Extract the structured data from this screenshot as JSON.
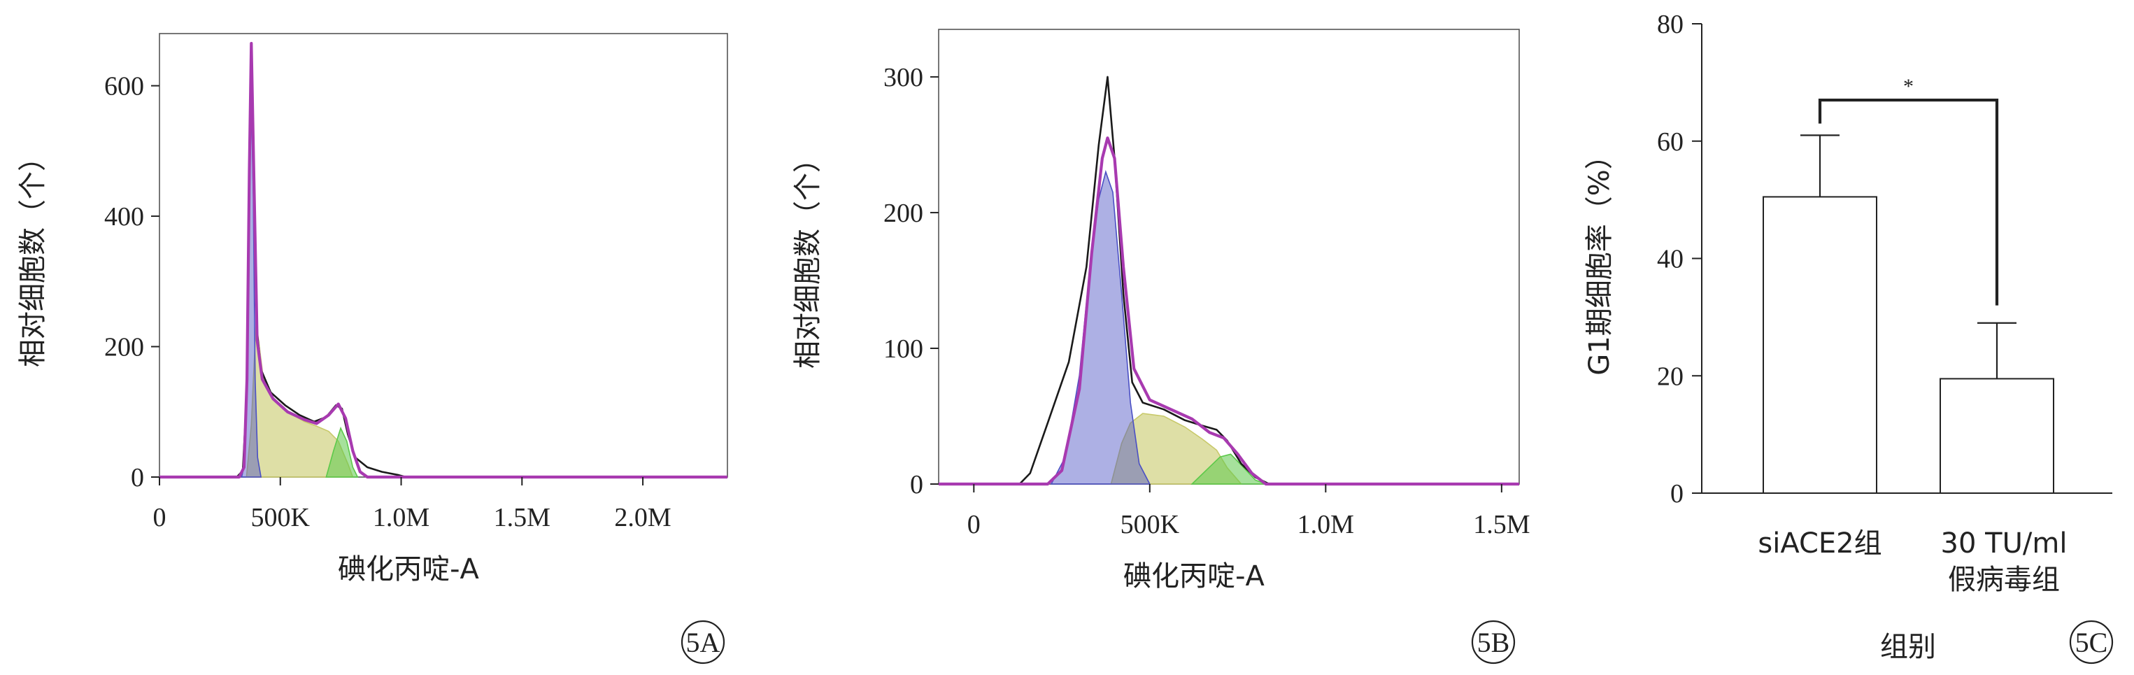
{
  "chart_data": [
    {
      "panel": "5A",
      "type": "area",
      "xlabel": "碘化丙啶-A",
      "ylabel": "相对细胞数（个）",
      "xlim": [
        0,
        2350000
      ],
      "ylim": [
        0,
        680
      ],
      "x_ticks": [
        0,
        500000,
        1000000,
        1500000,
        2000000
      ],
      "x_tick_labels": [
        "0",
        "500K",
        "1.0M",
        "1.5M",
        "2.0M"
      ],
      "y_ticks": [
        0,
        200,
        400,
        600
      ],
      "y_tick_labels": [
        "0",
        "200",
        "400",
        "600"
      ],
      "series": [
        {
          "role": "s-phase",
          "color": "#c8c96a",
          "fill_opacity": 0.6,
          "points": [
            [
              360000,
              0
            ],
            [
              380000,
              80
            ],
            [
              400000,
              240
            ],
            [
              430000,
              150
            ],
            [
              480000,
              115
            ],
            [
              530000,
              100
            ],
            [
              600000,
              85
            ],
            [
              650000,
              78
            ],
            [
              700000,
              70
            ],
            [
              740000,
              55
            ],
            [
              780000,
              20
            ],
            [
              800000,
              0
            ]
          ]
        },
        {
          "role": "g1-peak",
          "color": "#4a4fc4",
          "fill_opacity": 0.45,
          "points": [
            [
              340000,
              0
            ],
            [
              352000,
              20
            ],
            [
              362000,
              160
            ],
            [
              372000,
              420
            ],
            [
              380000,
              580
            ],
            [
              388000,
              430
            ],
            [
              396000,
              150
            ],
            [
              406000,
              30
            ],
            [
              420000,
              0
            ]
          ]
        },
        {
          "role": "g2-peak",
          "color": "#5cc94a",
          "fill_opacity": 0.55,
          "points": [
            [
              690000,
              0
            ],
            [
              720000,
              40
            ],
            [
              750000,
              75
            ],
            [
              775000,
              55
            ],
            [
              800000,
              15
            ],
            [
              820000,
              0
            ]
          ]
        },
        {
          "role": "raw",
          "color": "#1a1a1a",
          "fill_opacity": 0,
          "points": [
            [
              0,
              0
            ],
            [
              320000,
              0
            ],
            [
              345000,
              10
            ],
            [
              360000,
              120
            ],
            [
              372000,
              480
            ],
            [
              380000,
              640
            ],
            [
              390000,
              460
            ],
            [
              402000,
              230
            ],
            [
              420000,
              165
            ],
            [
              460000,
              130
            ],
            [
              520000,
              110
            ],
            [
              580000,
              95
            ],
            [
              640000,
              85
            ],
            [
              690000,
              92
            ],
            [
              730000,
              110
            ],
            [
              755000,
              105
            ],
            [
              780000,
              65
            ],
            [
              810000,
              30
            ],
            [
              860000,
              15
            ],
            [
              920000,
              8
            ],
            [
              990000,
              3
            ],
            [
              1020000,
              0
            ],
            [
              2350000,
              0
            ]
          ]
        },
        {
          "role": "fit",
          "color": "#a83ab0",
          "fill_opacity": 0,
          "points": [
            [
              0,
              0
            ],
            [
              330000,
              0
            ],
            [
              350000,
              15
            ],
            [
              362000,
              150
            ],
            [
              372000,
              470
            ],
            [
              380000,
              665
            ],
            [
              390000,
              470
            ],
            [
              404000,
              210
            ],
            [
              425000,
              150
            ],
            [
              470000,
              120
            ],
            [
              530000,
              100
            ],
            [
              600000,
              88
            ],
            [
              650000,
              82
            ],
            [
              700000,
              95
            ],
            [
              740000,
              112
            ],
            [
              770000,
              90
            ],
            [
              800000,
              40
            ],
            [
              830000,
              8
            ],
            [
              860000,
              0
            ],
            [
              2350000,
              0
            ]
          ]
        }
      ]
    },
    {
      "panel": "5B",
      "type": "area",
      "xlabel": "碘化丙啶-A",
      "ylabel": "相对细胞数（个）",
      "xlim": [
        -100000,
        1550000
      ],
      "ylim": [
        0,
        335
      ],
      "x_ticks": [
        0,
        500000,
        1000000,
        1500000
      ],
      "x_tick_labels": [
        "0",
        "500K",
        "1.0M",
        "1.5M"
      ],
      "y_ticks": [
        0,
        100,
        200,
        300
      ],
      "y_tick_labels": [
        "0",
        "100",
        "200",
        "300"
      ],
      "series": [
        {
          "role": "s-phase",
          "color": "#c8c96a",
          "fill_opacity": 0.6,
          "points": [
            [
              390000,
              0
            ],
            [
              420000,
              30
            ],
            [
              445000,
              45
            ],
            [
              480000,
              52
            ],
            [
              540000,
              50
            ],
            [
              600000,
              42
            ],
            [
              650000,
              33
            ],
            [
              690000,
              25
            ],
            [
              720000,
              12
            ],
            [
              760000,
              0
            ]
          ]
        },
        {
          "role": "g1-peak",
          "color": "#4a4fc4",
          "fill_opacity": 0.45,
          "points": [
            [
              220000,
              0
            ],
            [
              260000,
              20
            ],
            [
              300000,
              80
            ],
            [
              330000,
              160
            ],
            [
              355000,
              210
            ],
            [
              375000,
              230
            ],
            [
              395000,
              215
            ],
            [
              420000,
              140
            ],
            [
              445000,
              60
            ],
            [
              470000,
              15
            ],
            [
              500000,
              0
            ]
          ]
        },
        {
          "role": "g2-peak",
          "color": "#5cc94a",
          "fill_opacity": 0.55,
          "points": [
            [
              620000,
              0
            ],
            [
              660000,
              10
            ],
            [
              700000,
              20
            ],
            [
              730000,
              22
            ],
            [
              760000,
              14
            ],
            [
              800000,
              3
            ],
            [
              830000,
              0
            ]
          ]
        },
        {
          "role": "raw",
          "color": "#1a1a1a",
          "fill_opacity": 0,
          "points": [
            [
              -100000,
              0
            ],
            [
              130000,
              0
            ],
            [
              160000,
              8
            ],
            [
              210000,
              45
            ],
            [
              270000,
              90
            ],
            [
              320000,
              160
            ],
            [
              355000,
              250
            ],
            [
              380000,
              300
            ],
            [
              400000,
              240
            ],
            [
              425000,
              140
            ],
            [
              450000,
              75
            ],
            [
              480000,
              60
            ],
            [
              540000,
              55
            ],
            [
              600000,
              47
            ],
            [
              650000,
              43
            ],
            [
              690000,
              40
            ],
            [
              720000,
              32
            ],
            [
              760000,
              15
            ],
            [
              800000,
              5
            ],
            [
              840000,
              0
            ],
            [
              1550000,
              0
            ]
          ]
        },
        {
          "role": "fit",
          "color": "#a83ab0",
          "fill_opacity": 0,
          "points": [
            [
              -100000,
              0
            ],
            [
              210000,
              0
            ],
            [
              250000,
              10
            ],
            [
              300000,
              70
            ],
            [
              335000,
              170
            ],
            [
              365000,
              240
            ],
            [
              380000,
              255
            ],
            [
              400000,
              240
            ],
            [
              425000,
              160
            ],
            [
              455000,
              85
            ],
            [
              500000,
              62
            ],
            [
              560000,
              55
            ],
            [
              620000,
              48
            ],
            [
              670000,
              38
            ],
            [
              710000,
              34
            ],
            [
              750000,
              22
            ],
            [
              790000,
              8
            ],
            [
              830000,
              0
            ],
            [
              1550000,
              0
            ]
          ]
        }
      ]
    },
    {
      "panel": "5C",
      "type": "bar",
      "categories": [
        "siACE2组",
        "30 TU/ml\n假病毒组"
      ],
      "values": [
        50.5,
        19.5
      ],
      "errors": [
        10.5,
        9.5
      ],
      "ylabel": "G1期细胞率（%）",
      "xlabel": "组别",
      "ylim": [
        0,
        80
      ],
      "y_ticks": [
        0,
        20,
        40,
        60,
        80
      ],
      "y_tick_labels": [
        "0",
        "20",
        "40",
        "60",
        "80"
      ],
      "significance": {
        "pair": [
          0,
          1
        ],
        "label": "*",
        "y": 67
      }
    }
  ]
}
